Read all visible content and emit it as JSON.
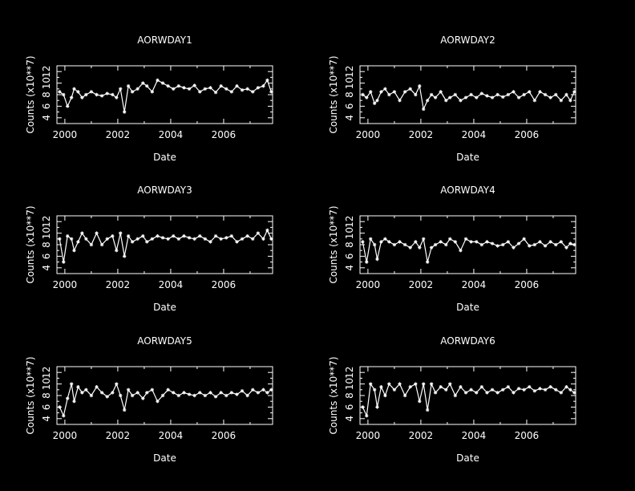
{
  "colors": {
    "background": "#000000",
    "foreground": "#ffffff"
  },
  "chart_data": [
    {
      "type": "line",
      "title": "AORWDAY1",
      "xlabel": "Date",
      "ylabel": "Counts (x10**7)",
      "xlim": [
        1999.7,
        2007.85
      ],
      "ylim": [
        3.0,
        13.0
      ],
      "xticks": [
        2000,
        2002,
        2004,
        2006
      ],
      "xtick_labels": [
        "2000",
        "2002",
        "2004",
        "2006"
      ],
      "yticks": [
        4,
        6,
        8,
        10,
        12
      ],
      "ytick_labels": [
        "4",
        "6",
        "8",
        "10",
        "12"
      ],
      "x": [
        1999.8,
        1999.95,
        2000.1,
        2000.25,
        2000.35,
        2000.5,
        2000.65,
        2000.8,
        2001.0,
        2001.2,
        2001.4,
        2001.6,
        2001.8,
        2001.95,
        2002.1,
        2002.25,
        2002.4,
        2002.55,
        2002.75,
        2002.95,
        2003.1,
        2003.3,
        2003.5,
        2003.7,
        2003.9,
        2004.1,
        2004.3,
        2004.5,
        2004.7,
        2004.9,
        2005.1,
        2005.3,
        2005.5,
        2005.7,
        2005.9,
        2006.1,
        2006.3,
        2006.5,
        2006.7,
        2006.9,
        2007.1,
        2007.3,
        2007.5,
        2007.65,
        2007.8
      ],
      "values": [
        8.5,
        8.0,
        6.0,
        7.5,
        9.0,
        8.5,
        7.5,
        8.0,
        8.5,
        8.0,
        7.8,
        8.2,
        8.0,
        7.5,
        9.0,
        5.0,
        9.5,
        8.5,
        9.0,
        10.0,
        9.5,
        8.5,
        10.5,
        10.0,
        9.5,
        9.0,
        9.5,
        9.2,
        9.0,
        9.6,
        8.5,
        9.0,
        9.2,
        8.4,
        9.5,
        9.0,
        8.5,
        9.5,
        8.8,
        9.0,
        8.5,
        9.2,
        9.5,
        10.5,
        8.5
      ]
    },
    {
      "type": "line",
      "title": "AORWDAY2",
      "xlabel": "Date",
      "ylabel": "Counts (x10**7)",
      "xlim": [
        1999.7,
        2007.85
      ],
      "ylim": [
        3.0,
        13.0
      ],
      "xticks": [
        2000,
        2002,
        2004,
        2006
      ],
      "xtick_labels": [
        "2000",
        "2002",
        "2004",
        "2006"
      ],
      "yticks": [
        4,
        6,
        8,
        10,
        12
      ],
      "ytick_labels": [
        "4",
        "6",
        "8",
        "10",
        "12"
      ],
      "x": [
        1999.8,
        1999.95,
        2000.1,
        2000.25,
        2000.35,
        2000.5,
        2000.65,
        2000.8,
        2001.0,
        2001.2,
        2001.4,
        2001.6,
        2001.8,
        2001.95,
        2002.1,
        2002.25,
        2002.4,
        2002.55,
        2002.75,
        2002.95,
        2003.1,
        2003.3,
        2003.5,
        2003.7,
        2003.9,
        2004.1,
        2004.3,
        2004.5,
        2004.7,
        2004.9,
        2005.1,
        2005.3,
        2005.5,
        2005.7,
        2005.9,
        2006.1,
        2006.3,
        2006.5,
        2006.7,
        2006.9,
        2007.1,
        2007.3,
        2007.5,
        2007.65,
        2007.8
      ],
      "values": [
        8.0,
        7.5,
        8.5,
        6.5,
        7.0,
        8.5,
        9.0,
        8.0,
        8.5,
        7.0,
        8.5,
        9.0,
        8.0,
        9.5,
        5.5,
        7.0,
        8.0,
        7.5,
        8.5,
        7.0,
        7.5,
        8.0,
        7.0,
        7.5,
        8.0,
        7.5,
        8.2,
        7.8,
        7.5,
        8.0,
        7.6,
        8.0,
        8.5,
        7.5,
        8.0,
        8.5,
        7.0,
        8.5,
        8.0,
        7.5,
        8.0,
        7.0,
        8.0,
        7.0,
        8.5
      ]
    },
    {
      "type": "line",
      "title": "AORWDAY3",
      "xlabel": "Date",
      "ylabel": "Counts (x10**7)",
      "xlim": [
        1999.7,
        2007.85
      ],
      "ylim": [
        3.0,
        13.0
      ],
      "xticks": [
        2000,
        2002,
        2004,
        2006
      ],
      "xtick_labels": [
        "2000",
        "2002",
        "2004",
        "2006"
      ],
      "yticks": [
        4,
        6,
        8,
        10,
        12
      ],
      "ytick_labels": [
        "4",
        "6",
        "8",
        "10",
        "12"
      ],
      "x": [
        1999.8,
        1999.95,
        2000.1,
        2000.25,
        2000.35,
        2000.5,
        2000.65,
        2000.8,
        2001.0,
        2001.2,
        2001.4,
        2001.6,
        2001.8,
        2001.95,
        2002.1,
        2002.25,
        2002.4,
        2002.55,
        2002.75,
        2002.95,
        2003.1,
        2003.3,
        2003.5,
        2003.7,
        2003.9,
        2004.1,
        2004.3,
        2004.5,
        2004.7,
        2004.9,
        2005.1,
        2005.3,
        2005.5,
        2005.7,
        2005.9,
        2006.1,
        2006.3,
        2006.5,
        2006.7,
        2006.9,
        2007.1,
        2007.3,
        2007.5,
        2007.65,
        2007.8
      ],
      "values": [
        9.0,
        5.0,
        9.5,
        9.0,
        7.0,
        8.5,
        10.0,
        9.0,
        8.0,
        10.0,
        8.0,
        9.0,
        9.5,
        7.0,
        10.0,
        6.0,
        9.5,
        8.5,
        9.0,
        9.5,
        8.5,
        9.0,
        9.5,
        9.2,
        9.0,
        9.5,
        9.0,
        9.5,
        9.2,
        9.0,
        9.5,
        9.0,
        8.5,
        9.5,
        9.0,
        9.2,
        9.5,
        8.5,
        9.0,
        9.5,
        9.0,
        10.0,
        9.0,
        10.5,
        9.0
      ]
    },
    {
      "type": "line",
      "title": "AORWDAY4",
      "xlabel": "Date",
      "ylabel": "Counts (x10**7)",
      "xlim": [
        1999.7,
        2007.85
      ],
      "ylim": [
        3.0,
        13.0
      ],
      "xticks": [
        2000,
        2002,
        2004,
        2006
      ],
      "xtick_labels": [
        "2000",
        "2002",
        "2004",
        "2006"
      ],
      "yticks": [
        4,
        6,
        8,
        10,
        12
      ],
      "ytick_labels": [
        "4",
        "6",
        "8",
        "10",
        "12"
      ],
      "x": [
        1999.8,
        1999.95,
        2000.1,
        2000.25,
        2000.35,
        2000.5,
        2000.65,
        2000.8,
        2001.0,
        2001.2,
        2001.4,
        2001.6,
        2001.8,
        2001.95,
        2002.1,
        2002.25,
        2002.4,
        2002.55,
        2002.75,
        2002.95,
        2003.1,
        2003.3,
        2003.5,
        2003.7,
        2003.9,
        2004.1,
        2004.3,
        2004.5,
        2004.7,
        2004.9,
        2005.1,
        2005.3,
        2005.5,
        2005.7,
        2005.9,
        2006.1,
        2006.3,
        2006.5,
        2006.7,
        2006.9,
        2007.1,
        2007.3,
        2007.5,
        2007.65,
        2007.8
      ],
      "values": [
        8.5,
        5.0,
        9.0,
        8.0,
        5.5,
        8.5,
        9.0,
        8.5,
        8.0,
        8.5,
        8.0,
        7.5,
        8.5,
        7.5,
        9.0,
        5.0,
        7.5,
        8.0,
        8.5,
        8.0,
        9.0,
        8.5,
        7.0,
        9.0,
        8.5,
        8.5,
        8.0,
        8.5,
        8.2,
        7.8,
        8.0,
        8.5,
        7.5,
        8.2,
        9.0,
        7.8,
        8.0,
        8.5,
        7.8,
        8.5,
        8.0,
        8.5,
        7.5,
        8.2,
        8.0
      ]
    },
    {
      "type": "line",
      "title": "AORWDAY5",
      "xlabel": "Date",
      "ylabel": "Counts (x10**7)",
      "xlim": [
        1999.7,
        2007.85
      ],
      "ylim": [
        3.0,
        13.0
      ],
      "xticks": [
        2000,
        2002,
        2004,
        2006
      ],
      "xtick_labels": [
        "2000",
        "2002",
        "2004",
        "2006"
      ],
      "yticks": [
        4,
        6,
        8,
        10,
        12
      ],
      "ytick_labels": [
        "4",
        "6",
        "8",
        "10",
        "12"
      ],
      "x": [
        1999.8,
        1999.95,
        2000.1,
        2000.25,
        2000.35,
        2000.5,
        2000.65,
        2000.8,
        2001.0,
        2001.2,
        2001.4,
        2001.6,
        2001.8,
        2001.95,
        2002.1,
        2002.25,
        2002.4,
        2002.55,
        2002.75,
        2002.95,
        2003.1,
        2003.3,
        2003.5,
        2003.7,
        2003.9,
        2004.1,
        2004.3,
        2004.5,
        2004.7,
        2004.9,
        2005.1,
        2005.3,
        2005.5,
        2005.7,
        2005.9,
        2006.1,
        2006.3,
        2006.5,
        2006.7,
        2006.9,
        2007.1,
        2007.3,
        2007.5,
        2007.65,
        2007.8
      ],
      "values": [
        6.0,
        4.5,
        7.5,
        10.0,
        7.0,
        9.5,
        8.5,
        9.0,
        8.0,
        9.5,
        8.5,
        7.8,
        8.5,
        10.0,
        8.0,
        5.5,
        9.0,
        8.0,
        8.5,
        7.5,
        8.5,
        9.0,
        7.0,
        8.0,
        9.0,
        8.5,
        8.0,
        8.5,
        8.2,
        8.0,
        8.5,
        8.0,
        8.5,
        7.8,
        8.5,
        8.0,
        8.5,
        8.2,
        8.8,
        8.0,
        9.0,
        8.5,
        9.0,
        8.5,
        9.0
      ]
    },
    {
      "type": "line",
      "title": "AORWDAY6",
      "xlabel": "Date",
      "ylabel": "Counts (x10**7)",
      "xlim": [
        1999.7,
        2007.85
      ],
      "ylim": [
        3.0,
        13.0
      ],
      "xticks": [
        2000,
        2002,
        2004,
        2006
      ],
      "xtick_labels": [
        "2000",
        "2002",
        "2004",
        "2006"
      ],
      "yticks": [
        4,
        6,
        8,
        10,
        12
      ],
      "ytick_labels": [
        "4",
        "6",
        "8",
        "10",
        "12"
      ],
      "x": [
        1999.8,
        1999.95,
        2000.1,
        2000.25,
        2000.35,
        2000.5,
        2000.65,
        2000.8,
        2001.0,
        2001.2,
        2001.4,
        2001.6,
        2001.8,
        2001.95,
        2002.1,
        2002.25,
        2002.4,
        2002.55,
        2002.75,
        2002.95,
        2003.1,
        2003.3,
        2003.5,
        2003.7,
        2003.9,
        2004.1,
        2004.3,
        2004.5,
        2004.7,
        2004.9,
        2005.1,
        2005.3,
        2005.5,
        2005.7,
        2005.9,
        2006.1,
        2006.3,
        2006.5,
        2006.7,
        2006.9,
        2007.1,
        2007.3,
        2007.5,
        2007.65,
        2007.8
      ],
      "values": [
        6.0,
        4.5,
        10.0,
        9.0,
        6.0,
        9.5,
        8.0,
        10.0,
        9.0,
        10.0,
        8.0,
        9.5,
        10.0,
        7.0,
        10.0,
        5.5,
        10.0,
        8.5,
        9.5,
        9.0,
        10.0,
        8.0,
        9.5,
        8.5,
        9.0,
        8.5,
        9.5,
        8.5,
        9.0,
        8.5,
        9.0,
        9.5,
        8.5,
        9.2,
        9.0,
        9.5,
        8.8,
        9.2,
        9.0,
        9.5,
        9.0,
        8.5,
        9.5,
        9.0,
        8.5
      ]
    }
  ]
}
